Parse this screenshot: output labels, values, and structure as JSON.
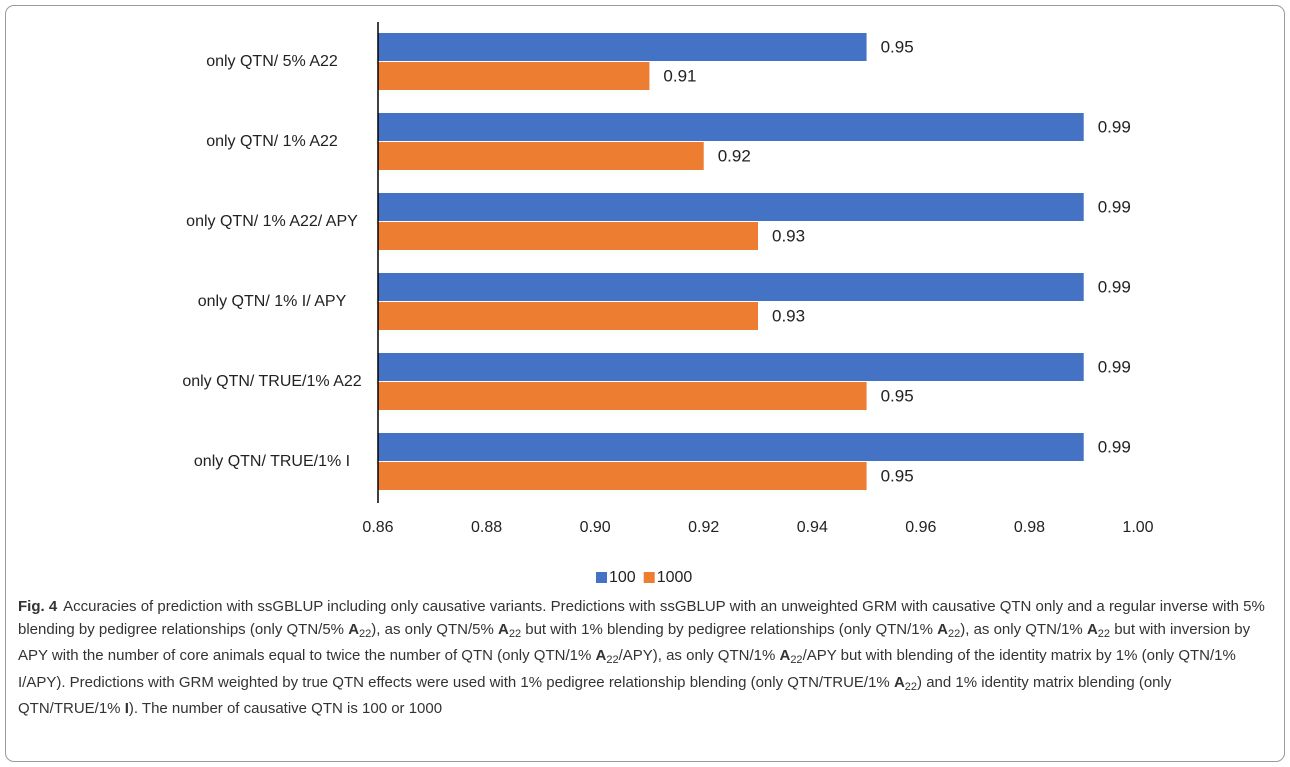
{
  "chart_data": {
    "type": "barh",
    "categories": [
      "only QTN/ 5% A22",
      "only QTN/ 1% A22",
      "only QTN/ 1% A22/ APY",
      "only QTN/ 1% I/ APY",
      "only QTN/ TRUE/1% A22",
      "only QTN/ TRUE/1% I"
    ],
    "series": [
      {
        "name": "100",
        "color": "#4472c4",
        "values": [
          0.95,
          0.99,
          0.99,
          0.99,
          0.99,
          0.99
        ]
      },
      {
        "name": "1000",
        "color": "#ed7d31",
        "values": [
          0.91,
          0.92,
          0.93,
          0.93,
          0.95,
          0.95
        ]
      }
    ],
    "xlim": [
      0.86,
      1.0
    ],
    "xticks": [
      0.86,
      0.88,
      {
        "value": 0.9,
        "label": "0.90"
      },
      0.92,
      0.94,
      0.96,
      0.98,
      {
        "value": 1.0,
        "label": "1.00"
      }
    ],
    "legend": "bottom",
    "grid": false
  },
  "caption": {
    "label": "Fig. 4",
    "runs": [
      {
        "text": "Accuracies of prediction with ssGBLUP including only causative variants. Predictions with ssGBLUP with an unweighted GRM with causative QTN only and a regular inverse with 5% blending by pedigree relationships (only QTN/5% "
      },
      {
        "text": "A",
        "bold": true
      },
      {
        "text": "22",
        "sub": true
      },
      {
        "text": "), as only QTN/5% "
      },
      {
        "text": "A",
        "bold": true
      },
      {
        "text": "22",
        "sub": true
      },
      {
        "text": " but with 1% blending by pedigree relationships (only QTN/1% "
      },
      {
        "text": "A",
        "bold": true
      },
      {
        "text": "22",
        "sub": true
      },
      {
        "text": "), as only QTN/1% "
      },
      {
        "text": "A",
        "bold": true
      },
      {
        "text": "22",
        "sub": true
      },
      {
        "text": " but with inversion by APY with the number of core animals equal to twice the number of QTN (only QTN/1% "
      },
      {
        "text": "A",
        "bold": true
      },
      {
        "text": "22",
        "sub": true
      },
      {
        "text": "/APY), as only QTN/1% "
      },
      {
        "text": "A",
        "bold": true
      },
      {
        "text": "22",
        "sub": true
      },
      {
        "text": "/APY but with blending of the identity matrix by 1% (only QTN/1% I/APY). Predictions with GRM weighted by true QTN effects were used with 1% pedigree relationship blending (only QTN/TRUE/1% "
      },
      {
        "text": "A",
        "bold": true
      },
      {
        "text": "22",
        "sub": true
      },
      {
        "text": ") and 1% identity matrix blending (only QTN/TRUE/1% "
      },
      {
        "text": "I",
        "bold": true
      },
      {
        "text": "). The number of causative QTN is 100 or 1000"
      }
    ]
  }
}
